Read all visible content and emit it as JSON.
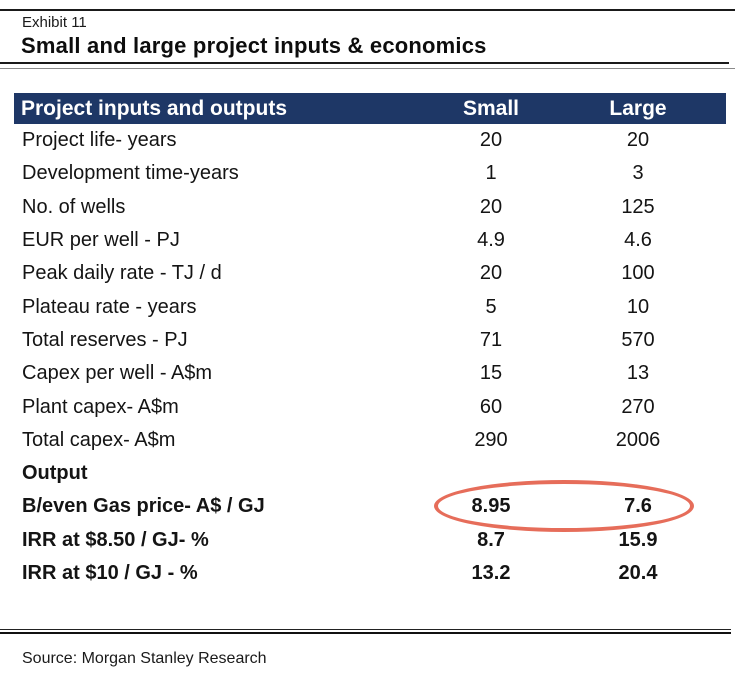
{
  "page": {
    "exhibit_label": "Exhibit 11",
    "title": "Small and large project inputs & economics",
    "source": "Source: Morgan Stanley Research"
  },
  "colors": {
    "header_bg": "#1e3766",
    "header_text": "#ffffff",
    "body_text": "#141414",
    "highlight_ellipse": "#e2533d"
  },
  "table": {
    "header": {
      "label": "Project inputs and outputs",
      "small": "Small",
      "large": "Large"
    },
    "rows": [
      {
        "label": "Project life- years",
        "small": "20",
        "large": "20"
      },
      {
        "label": "Development time-years",
        "small": "1",
        "large": "3"
      },
      {
        "label": "No. of wells",
        "small": "20",
        "large": "125"
      },
      {
        "label": "EUR per well - PJ",
        "small": "4.9",
        "large": "4.6"
      },
      {
        "label": "Peak daily rate - TJ / d",
        "small": "20",
        "large": "100"
      },
      {
        "label": "Plateau rate - years",
        "small": "5",
        "large": "10"
      },
      {
        "label": "Total reserves - PJ",
        "small": "71",
        "large": "570"
      },
      {
        "label": "Capex per well - A$m",
        "small": "15",
        "large": "13"
      },
      {
        "label": "Plant capex- A$m",
        "small": "60",
        "large": "270"
      },
      {
        "label": "Total capex- A$m",
        "small": "290",
        "large": "2006"
      },
      {
        "label": "Output",
        "small": "",
        "large": ""
      },
      {
        "label": "B/even Gas price- A$ / GJ",
        "small": "8.95",
        "large": "7.6"
      },
      {
        "label": "IRR at $8.50 / GJ- %",
        "small": "8.7",
        "large": "15.9"
      },
      {
        "label": "IRR at $10 / GJ - %",
        "small": "13.2",
        "large": "20.4"
      }
    ]
  },
  "annotation": {
    "type": "ellipse-highlight",
    "highlights": "Breakeven gas price values for Small and Large projects"
  }
}
